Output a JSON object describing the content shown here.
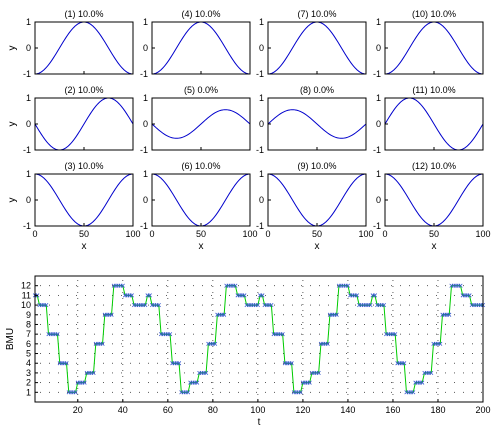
{
  "chart_data": [
    {
      "type": "line",
      "panels": [
        {
          "title": "(1)  10.0%",
          "phase_deg": 180
        },
        {
          "title": "(4)  10.0%",
          "phase_deg": 180
        },
        {
          "title": "(7)  10.0%",
          "phase_deg": 180
        },
        {
          "title": "(10)  10.0%",
          "phase_deg": 180
        },
        {
          "title": "(2)  10.0%",
          "phase_deg": 90,
          "amplitude": 1
        },
        {
          "title": "(5)  0.0%",
          "phase_deg": 90,
          "amplitude": 0.55
        },
        {
          "title": "(8)  0.0%",
          "phase_deg": 270,
          "amplitude": 0.55
        },
        {
          "title": "(11)  10.0%",
          "phase_deg": 270,
          "amplitude": 1
        },
        {
          "title": "(3)  10.0%",
          "phase_deg": 0
        },
        {
          "title": "(6)  10.0%",
          "phase_deg": 0
        },
        {
          "title": "(9)  10.0%",
          "phase_deg": 0
        },
        {
          "title": "(12)  10.0%",
          "phase_deg": 0
        }
      ],
      "xlabel": "x",
      "ylabel": "y",
      "xlim": [
        0,
        100
      ],
      "ylim": [
        -1,
        1
      ],
      "xticks": [
        "0",
        "50",
        "100"
      ],
      "yticks": [
        "-1",
        "0",
        "1"
      ],
      "grid": false
    },
    {
      "type": "line",
      "xlabel": "t",
      "ylabel": "BMU",
      "xlim": [
        1,
        200
      ],
      "ylim": [
        0,
        13
      ],
      "xticks": [
        "20",
        "40",
        "60",
        "80",
        "100",
        "120",
        "140",
        "160",
        "180",
        "200"
      ],
      "yticks": [
        "1",
        "2",
        "3",
        "4",
        "5",
        "6",
        "7",
        "8",
        "9",
        "10",
        "11",
        "12"
      ],
      "grid": true,
      "grid_style": "dotted",
      "colors": {
        "line": "#00cc00",
        "markers": "#3355cc"
      },
      "cycle_length": 50,
      "cycle_sequence": [
        {
          "bmu": 11,
          "from": 1,
          "to": 2
        },
        {
          "bmu": 10,
          "from": 3,
          "to": 6
        },
        {
          "bmu": 7,
          "from": 7,
          "to": 11
        },
        {
          "bmu": 4,
          "from": 12,
          "to": 15
        },
        {
          "bmu": 1,
          "from": 16,
          "to": 19
        },
        {
          "bmu": 2,
          "from": 20,
          "to": 23
        },
        {
          "bmu": 3,
          "from": 24,
          "to": 27
        },
        {
          "bmu": 6,
          "from": 28,
          "to": 31
        },
        {
          "bmu": 9,
          "from": 32,
          "to": 35
        },
        {
          "bmu": 12,
          "from": 36,
          "to": 40
        },
        {
          "bmu": 11,
          "from": 41,
          "to": 44
        },
        {
          "bmu": 10,
          "from": 45,
          "to": 50
        }
      ]
    }
  ]
}
